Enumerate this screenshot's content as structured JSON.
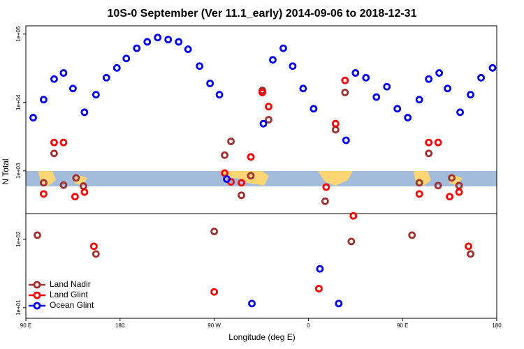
{
  "chart_data": {
    "type": "scatter",
    "title": "10S-0 September (Ver 11.1_early)   2014-09-06 to 2018-12-31",
    "x_label": "Longitude (deg E)",
    "y_label": "N Total",
    "xlim": [
      90,
      540
    ],
    "ylim": [
      7,
      132000
    ],
    "log_y": true,
    "legend": "lower left",
    "xticks": [
      {
        "value": 90,
        "label": "90 E"
      },
      180,
      {
        "value": 270,
        "label": "90 W"
      },
      {
        "value": 360,
        "label": "0"
      },
      {
        "value": 450,
        "label": "90 E"
      },
      {
        "value": 540,
        "label": "180"
      }
    ],
    "yticks": [
      {
        "value": 10,
        "label": "1e+01"
      },
      {
        "value": 100,
        "label": "1e+02"
      },
      {
        "value": 1000,
        "label": "1e+03"
      },
      {
        "value": 10000,
        "label": "1e+04"
      },
      {
        "value": 100000,
        "label": "1e+05"
      }
    ],
    "series": [
      {
        "name": "Land Nadir",
        "color": "#a03030",
        "x": [
          101,
          107,
          117,
          126,
          138,
          145,
          157,
          270,
          280,
          286,
          296,
          305,
          316,
          322,
          386,
          395,
          401,
          376,
          459,
          466,
          475,
          484,
          497,
          504,
          515
        ],
        "values": [
          115,
          670,
          1800,
          620,
          790,
          600,
          61,
          130,
          1700,
          2700,
          440,
          850,
          15000,
          5600,
          4000,
          14000,
          93,
          360,
          115,
          670,
          1800,
          610,
          790,
          610,
          61
        ]
      },
      {
        "name": "Land Glint",
        "color": "#ff0000",
        "x": [
          117,
          126,
          107,
          137,
          146,
          155,
          270,
          280,
          286,
          296,
          305,
          316,
          322,
          386,
          395,
          403,
          370,
          377,
          466,
          475,
          484,
          495,
          504,
          513
        ],
        "values": [
          2600,
          2600,
          460,
          420,
          490,
          79,
          17,
          930,
          690,
          670,
          1600,
          14000,
          8700,
          4900,
          21000,
          220,
          19,
          580,
          460,
          2600,
          2600,
          420,
          490,
          79
        ]
      },
      {
        "name": "Ocean Glint",
        "color": "#0000ee",
        "x": [
          97,
          107,
          117,
          126,
          135,
          146,
          157,
          167,
          177,
          186,
          196,
          206,
          216,
          226,
          236,
          245,
          256,
          266,
          275,
          282,
          317,
          326,
          336,
          345,
          355,
          365,
          396,
          405,
          415,
          425,
          435,
          445,
          455,
          466,
          475,
          485,
          493,
          505,
          515,
          525,
          536,
          306,
          371,
          389
        ],
        "values": [
          6000,
          11000,
          22000,
          27000,
          16000,
          7200,
          13000,
          23000,
          32000,
          44000,
          62000,
          77000,
          89000,
          83000,
          77000,
          60000,
          34000,
          19000,
          13000,
          760,
          4900,
          42000,
          62000,
          34000,
          16000,
          8100,
          2800,
          27000,
          23000,
          12000,
          17000,
          8100,
          6000,
          11000,
          22000,
          27000,
          16000,
          7200,
          13000,
          23000,
          32000,
          11.5,
          37,
          11.5
        ]
      }
    ]
  }
}
